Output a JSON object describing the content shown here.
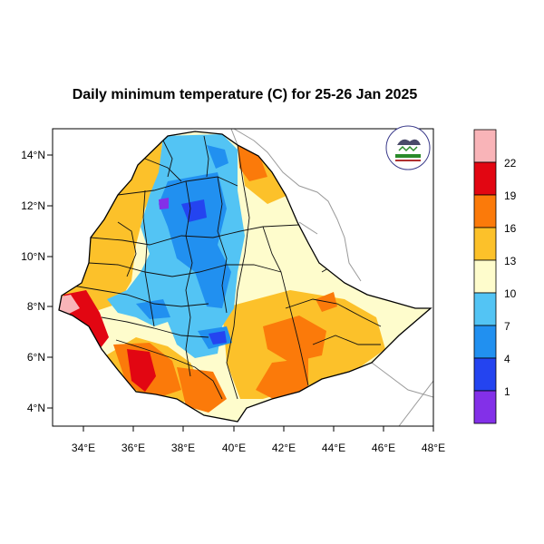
{
  "map": {
    "title": "Daily minimum temperature (C) for 25-26 Jan 2025",
    "lon_ticks": [
      "34°E",
      "36°E",
      "38°E",
      "40°E",
      "42°E",
      "44°E",
      "46°E",
      "48°E"
    ],
    "lat_ticks": [
      "14°N",
      "12°N",
      "10°N",
      "8°N",
      "6°N",
      "4°N"
    ],
    "logo_icon": "ethiopian-meteorology-institute-logo"
  },
  "legend": {
    "labels": [
      "22",
      "19",
      "16",
      "13",
      "10",
      "7",
      "4",
      "1"
    ],
    "colors": [
      "#f9b4b8",
      "#e20612",
      "#fb7a0a",
      "#fcc12a",
      "#fefccc",
      "#53c4f4",
      "#2190f0",
      "#2444f0",
      "#8330e8"
    ]
  }
}
